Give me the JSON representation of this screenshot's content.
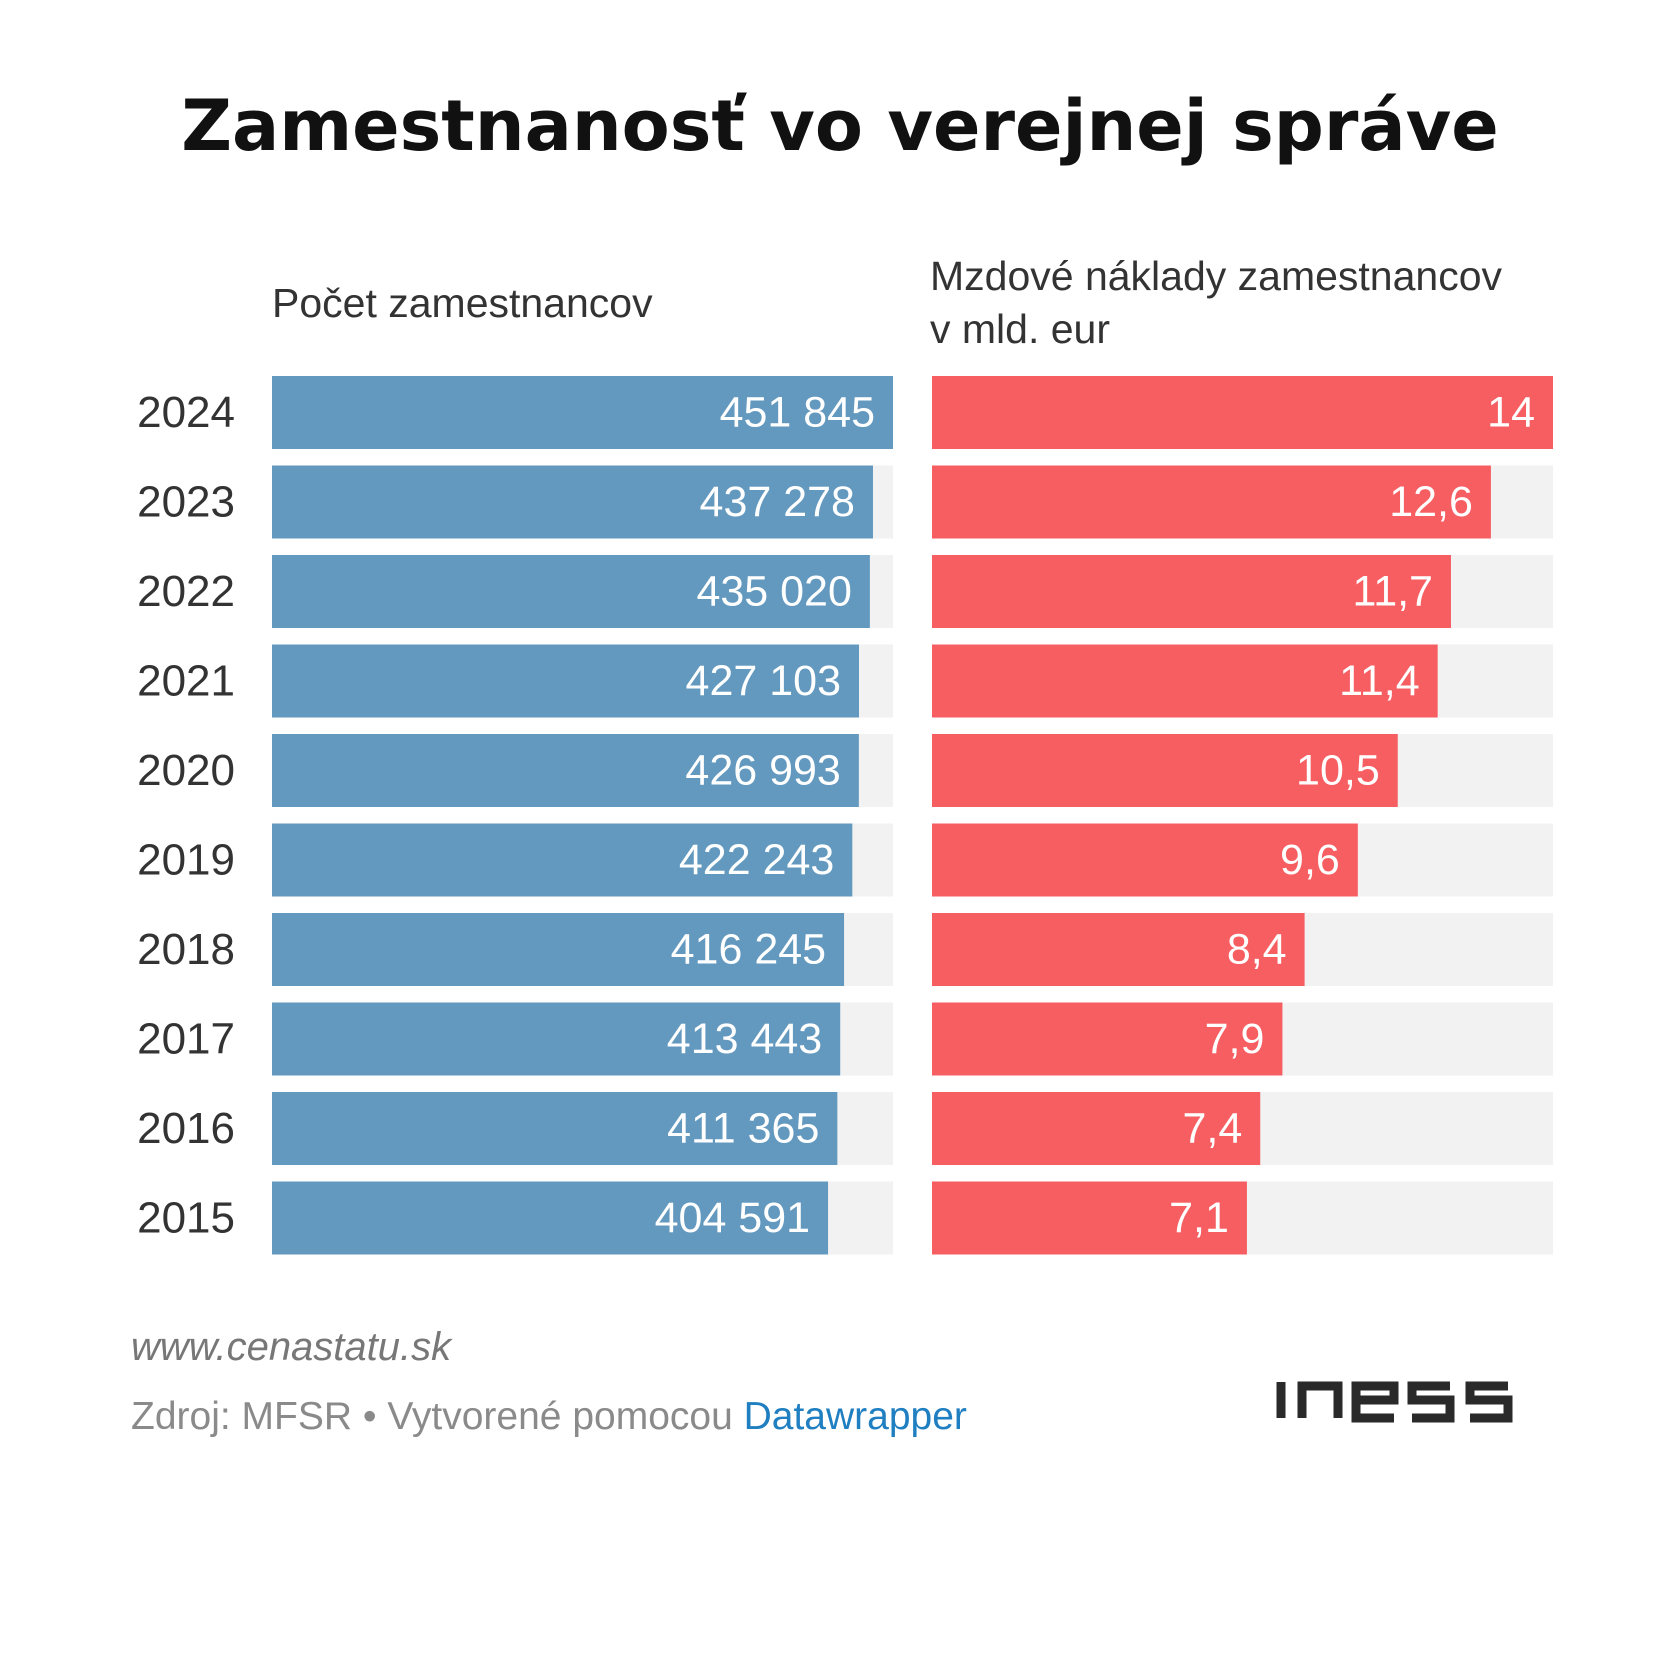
{
  "title": "Zamestnanosť vo verejnej správe",
  "chart_data": [
    {
      "type": "bar",
      "orientation": "horizontal",
      "title": "Počet zamestnancov",
      "categories": [
        "2024",
        "2023",
        "2022",
        "2021",
        "2020",
        "2019",
        "2018",
        "2017",
        "2016",
        "2015"
      ],
      "values": [
        451845,
        437278,
        435020,
        427103,
        426993,
        422243,
        416245,
        413443,
        411365,
        404591
      ],
      "labels": [
        "451 845",
        "437 278",
        "435 020",
        "427 103",
        "426 993",
        "422 243",
        "416 245",
        "413 443",
        "411 365",
        "404 591"
      ],
      "xlim": [
        0,
        451845
      ],
      "color": "#6399bf",
      "track_color": "#f2f2f2"
    },
    {
      "type": "bar",
      "orientation": "horizontal",
      "title": "Mzdové náklady zamestnancov v mld. eur",
      "categories": [
        "2024",
        "2023",
        "2022",
        "2021",
        "2020",
        "2019",
        "2018",
        "2017",
        "2016",
        "2015"
      ],
      "values": [
        14,
        12.6,
        11.7,
        11.4,
        10.5,
        9.6,
        8.4,
        7.9,
        7.4,
        7.1
      ],
      "labels": [
        "14",
        "12,6",
        "11,7",
        "11,4",
        "10,5",
        "9,6",
        "8,4",
        "7,9",
        "7,4",
        "7,1"
      ],
      "xlim": [
        0,
        14
      ],
      "color": "#f75e62",
      "track_color": "#f2f2f2"
    }
  ],
  "left_header": [
    "Počet zamestnancov"
  ],
  "right_header": [
    "Mzdové náklady zamestnancov",
    "v mld. eur"
  ],
  "footer": {
    "site": "www.cenastatu.sk",
    "source": "Zdroj: MFSR • Vytvorené pomocou ",
    "link": "Datawrapper"
  },
  "logo": "inESS"
}
